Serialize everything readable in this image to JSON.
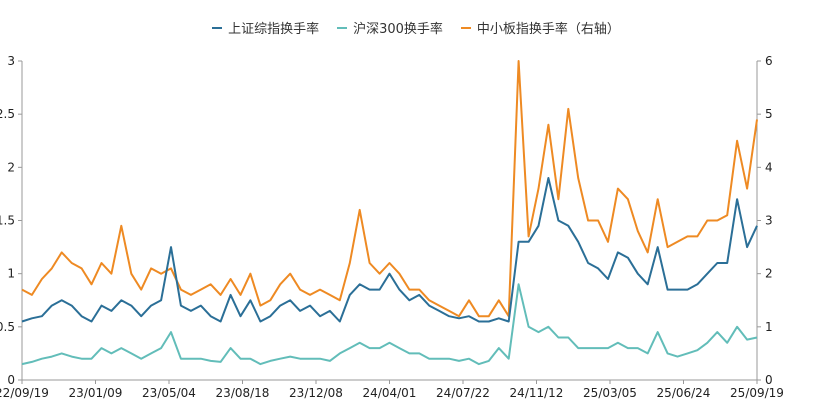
{
  "chart_data": {
    "type": "line",
    "title": "",
    "x_range": [
      "22/09/19",
      "25/09/19"
    ],
    "x_ticks": [
      "22/09/19",
      "23/01/09",
      "23/05/04",
      "23/08/18",
      "23/12/08",
      "24/04/01",
      "24/07/22",
      "24/11/12",
      "25/03/05",
      "25/06/24",
      "25/09/19"
    ],
    "y_left": {
      "range": [
        0,
        3
      ],
      "ticks": [
        "0",
        "0.5",
        "1",
        "1.5",
        "2",
        "2.5",
        "3"
      ]
    },
    "y_right": {
      "range": [
        0,
        6
      ],
      "ticks": [
        "0",
        "1",
        "2",
        "3",
        "4",
        "5",
        "6"
      ]
    },
    "grid": false,
    "legend_position": "top",
    "series": [
      {
        "name": "上证综指换手率",
        "axis": "left",
        "color": "#2b6f97",
        "values": [
          0.55,
          0.58,
          0.6,
          0.7,
          0.75,
          0.7,
          0.6,
          0.55,
          0.7,
          0.65,
          0.75,
          0.7,
          0.6,
          0.7,
          0.75,
          1.25,
          0.7,
          0.65,
          0.7,
          0.6,
          0.55,
          0.8,
          0.6,
          0.75,
          0.55,
          0.6,
          0.7,
          0.75,
          0.65,
          0.7,
          0.6,
          0.65,
          0.55,
          0.8,
          0.9,
          0.85,
          0.85,
          1.0,
          0.85,
          0.75,
          0.8,
          0.7,
          0.65,
          0.6,
          0.58,
          0.6,
          0.55,
          0.55,
          0.58,
          0.55,
          1.3,
          1.3,
          1.45,
          1.9,
          1.5,
          1.45,
          1.3,
          1.1,
          1.05,
          0.95,
          1.2,
          1.15,
          1.0,
          0.9,
          1.25,
          0.85,
          0.85,
          0.85,
          0.9,
          1.0,
          1.1,
          1.1,
          1.7,
          1.25,
          1.45
        ]
      },
      {
        "name": "沪深300换手率",
        "axis": "left",
        "color": "#62bdb9",
        "values": [
          0.15,
          0.17,
          0.2,
          0.22,
          0.25,
          0.22,
          0.2,
          0.2,
          0.3,
          0.25,
          0.3,
          0.25,
          0.2,
          0.25,
          0.3,
          0.45,
          0.2,
          0.2,
          0.2,
          0.18,
          0.17,
          0.3,
          0.2,
          0.2,
          0.15,
          0.18,
          0.2,
          0.22,
          0.2,
          0.2,
          0.2,
          0.18,
          0.25,
          0.3,
          0.35,
          0.3,
          0.3,
          0.35,
          0.3,
          0.25,
          0.25,
          0.2,
          0.2,
          0.2,
          0.18,
          0.2,
          0.15,
          0.18,
          0.3,
          0.2,
          0.9,
          0.5,
          0.45,
          0.5,
          0.4,
          0.4,
          0.3,
          0.3,
          0.3,
          0.3,
          0.35,
          0.3,
          0.3,
          0.25,
          0.45,
          0.25,
          0.22,
          0.25,
          0.28,
          0.35,
          0.45,
          0.35,
          0.5,
          0.38,
          0.4
        ]
      },
      {
        "name": "中小板指换手率（右轴）",
        "axis": "right",
        "color": "#ee8a23",
        "values": [
          1.7,
          1.6,
          1.9,
          2.1,
          2.4,
          2.2,
          2.1,
          1.8,
          2.2,
          2.0,
          2.9,
          2.0,
          1.7,
          2.1,
          2.0,
          2.1,
          1.7,
          1.6,
          1.7,
          1.8,
          1.6,
          1.9,
          1.6,
          2.0,
          1.4,
          1.5,
          1.8,
          2.0,
          1.7,
          1.6,
          1.7,
          1.6,
          1.5,
          2.2,
          3.2,
          2.2,
          2.0,
          2.2,
          2.0,
          1.7,
          1.7,
          1.5,
          1.4,
          1.3,
          1.2,
          1.5,
          1.2,
          1.2,
          1.5,
          1.2,
          6.0,
          2.7,
          3.6,
          4.8,
          3.4,
          5.1,
          3.8,
          3.0,
          3.0,
          2.6,
          3.6,
          3.4,
          2.8,
          2.4,
          3.4,
          2.5,
          2.6,
          2.7,
          2.7,
          3.0,
          3.0,
          3.1,
          4.5,
          3.6,
          4.9
        ]
      }
    ]
  }
}
